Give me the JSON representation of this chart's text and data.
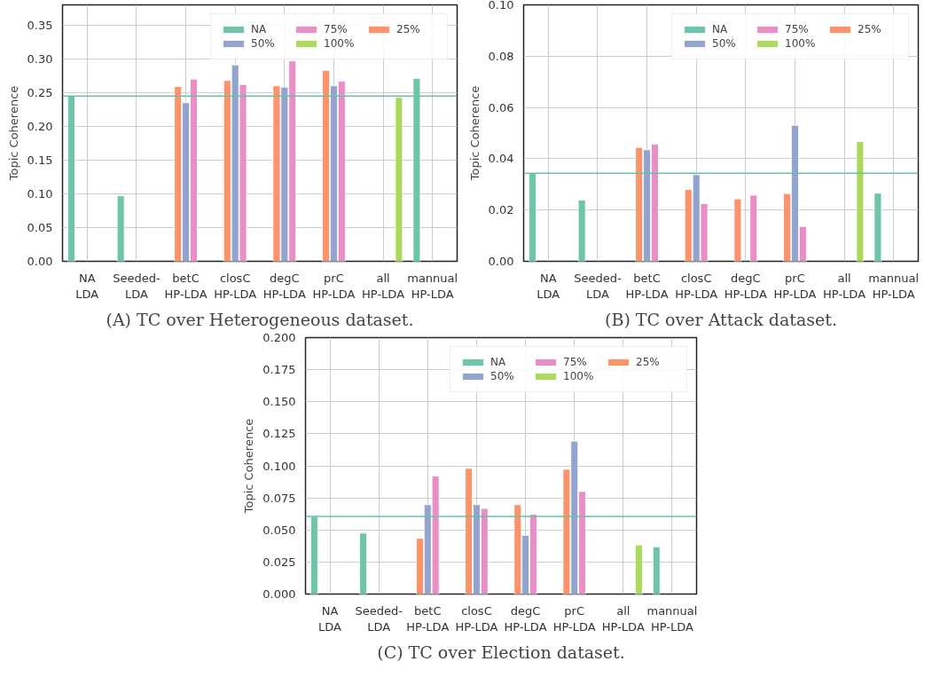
{
  "chart_data": [
    {
      "type": "bar",
      "title": "(A) TC over Heterogeneous dataset.",
      "ylabel": "Topic Coherence",
      "categories": [
        "NA\nLDA",
        "Seeded-\nLDA",
        "betC\nHP-LDA",
        "closC\nHP-LDA",
        "degC\nHP-LDA",
        "prC\nHP-LDA",
        "all\nHP-LDA",
        "mannual\nHP-LDA"
      ],
      "series": [
        {
          "name": "NA",
          "color": "#66c2a5",
          "values": [
            0.245,
            0.097,
            null,
            null,
            null,
            null,
            null,
            0.271
          ]
        },
        {
          "name": "25%",
          "color": "#fc8d62",
          "values": [
            null,
            null,
            0.259,
            0.268,
            0.26,
            0.283,
            null,
            null
          ]
        },
        {
          "name": "50%",
          "color": "#8da0cb",
          "values": [
            null,
            null,
            0.235,
            0.291,
            0.258,
            0.26,
            null,
            null
          ]
        },
        {
          "name": "75%",
          "color": "#e78ac3",
          "values": [
            null,
            null,
            0.27,
            0.262,
            0.297,
            0.267,
            null,
            null
          ]
        },
        {
          "name": "100%",
          "color": "#a6d854",
          "values": [
            null,
            null,
            null,
            null,
            null,
            null,
            0.243,
            null
          ]
        }
      ],
      "ylim": [
        0,
        0.38
      ],
      "yticks": [
        {
          "value": 0,
          "label": "0.00"
        },
        0.05,
        {
          "value": 0.1,
          "label": "0.10"
        },
        0.15,
        {
          "value": 0.2,
          "label": "0.20"
        },
        0.25,
        {
          "value": 0.3,
          "label": "0.30"
        },
        0.35
      ],
      "ref_lines": [
        {
          "axis": "y",
          "value": 0.245,
          "color": "#66c2a5"
        }
      ],
      "grid": true,
      "legend": "top right"
    },
    {
      "type": "bar",
      "title": "(B) TC over Attack dataset.",
      "ylabel": "Topic Coherence",
      "categories": [
        "NA\nLDA",
        "Seeded-\nLDA",
        "betC\nHP-LDA",
        "closC\nHP-LDA",
        "degC\nHP-LDA",
        "prC\nHP-LDA",
        "all\nHP-LDA",
        "mannual\nHP-LDA"
      ],
      "series": [
        {
          "name": "NA",
          "color": "#66c2a5",
          "values": [
            0.0343,
            0.0239,
            null,
            null,
            null,
            null,
            null,
            0.0266
          ]
        },
        {
          "name": "25%",
          "color": "#fc8d62",
          "values": [
            null,
            null,
            0.0444,
            0.028,
            0.0243,
            0.0264,
            null,
            null
          ]
        },
        {
          "name": "50%",
          "color": "#8da0cb",
          "values": [
            null,
            null,
            0.0435,
            0.0338,
            null,
            0.053,
            null,
            null
          ]
        },
        {
          "name": "75%",
          "color": "#e78ac3",
          "values": [
            null,
            null,
            0.0457,
            0.0225,
            0.0258,
            0.0136,
            null,
            null
          ]
        },
        {
          "name": "100%",
          "color": "#a6d854",
          "values": [
            null,
            null,
            null,
            null,
            null,
            null,
            0.0467,
            null
          ]
        }
      ],
      "ylim": [
        0,
        0.1
      ],
      "yticks": [
        {
          "value": 0,
          "label": "0.00"
        },
        0.02,
        0.04,
        0.06,
        0.08,
        {
          "value": 0.1,
          "label": "0.10"
        }
      ],
      "ref_lines": [
        {
          "axis": "y",
          "value": 0.0343,
          "color": "#66c2a5"
        }
      ],
      "grid": true,
      "legend": "top right"
    },
    {
      "type": "bar",
      "title": "(C) TC over Election dataset.",
      "ylabel": "Topic Coherence",
      "categories": [
        "NA\nLDA",
        "Seeded-\nLDA",
        "betC\nHP-LDA",
        "closC\nHP-LDA",
        "degC\nHP-LDA",
        "prC\nHP-LDA",
        "all\nHP-LDA",
        "mannual\nHP-LDA"
      ],
      "series": [
        {
          "name": "NA",
          "color": "#66c2a5",
          "values": [
            0.0605,
            0.0475,
            null,
            null,
            null,
            null,
            null,
            0.0368
          ]
        },
        {
          "name": "25%",
          "color": "#fc8d62",
          "values": [
            null,
            null,
            0.0435,
            0.098,
            0.0697,
            0.0973,
            null,
            null
          ]
        },
        {
          "name": "50%",
          "color": "#8da0cb",
          "values": [
            null,
            null,
            0.0697,
            0.0697,
            0.0458,
            0.1192,
            null,
            null
          ]
        },
        {
          "name": "75%",
          "color": "#e78ac3",
          "values": [
            null,
            null,
            0.092,
            0.0667,
            0.0622,
            0.08,
            null,
            null
          ]
        },
        {
          "name": "100%",
          "color": "#a6d854",
          "values": [
            null,
            null,
            null,
            null,
            null,
            null,
            0.0383,
            null
          ]
        }
      ],
      "ylim": [
        0,
        0.2
      ],
      "yticks": [
        {
          "value": 0,
          "label": "0.000"
        },
        0.025,
        {
          "value": 0.05,
          "label": "0.050"
        },
        0.075,
        {
          "value": 0.1,
          "label": "0.100"
        },
        0.125,
        {
          "value": 0.15,
          "label": "0.150"
        },
        0.175,
        {
          "value": 0.2,
          "label": "0.200"
        }
      ],
      "ref_lines": [
        {
          "axis": "y",
          "value": 0.0605,
          "color": "#66c2a5"
        }
      ],
      "grid": true,
      "legend": "top right"
    }
  ]
}
